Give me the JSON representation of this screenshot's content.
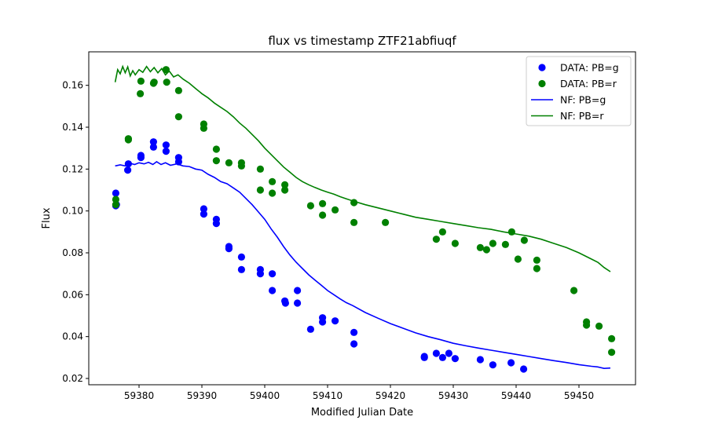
{
  "chart_data": {
    "type": "scatter",
    "title": "flux vs timestamp ZTF21abfiuqf",
    "xlabel": "Modified Julian Date",
    "ylabel": "Flux",
    "xlim": [
      59372,
      59459
    ],
    "ylim": [
      0.017,
      0.176
    ],
    "xticks": [
      59380,
      59390,
      59400,
      59410,
      59420,
      59430,
      59440,
      59450
    ],
    "yticks": [
      0.02,
      0.04,
      0.06,
      0.08,
      0.1,
      0.12,
      0.14,
      0.16
    ],
    "ytick_labels": [
      "0.02",
      "0.04",
      "0.06",
      "0.08",
      "0.10",
      "0.12",
      "0.14",
      "0.16"
    ],
    "grid": false,
    "legend_position": "top-right",
    "colors": {
      "g": "#0000ff",
      "r": "#008000"
    },
    "series": [
      {
        "name": "DATA: PB=g",
        "kind": "scatter",
        "color": "#0000ff",
        "points": [
          [
            59376.3,
            0.1085
          ],
          [
            59376.3,
            0.1025
          ],
          [
            59376.4,
            0.103
          ],
          [
            59378.3,
            0.1225
          ],
          [
            59378.2,
            0.1195
          ],
          [
            59380.3,
            0.1265
          ],
          [
            59380.3,
            0.1255
          ],
          [
            59382.3,
            0.133
          ],
          [
            59382.3,
            0.1305
          ],
          [
            59384.3,
            0.1315
          ],
          [
            59384.3,
            0.1285
          ],
          [
            59386.3,
            0.1255
          ],
          [
            59386.3,
            0.1235
          ],
          [
            59390.3,
            0.101
          ],
          [
            59390.3,
            0.0985
          ],
          [
            59392.3,
            0.096
          ],
          [
            59392.3,
            0.094
          ],
          [
            59394.3,
            0.083
          ],
          [
            59394.3,
            0.082
          ],
          [
            59396.3,
            0.078
          ],
          [
            59396.3,
            0.072
          ],
          [
            59399.3,
            0.072
          ],
          [
            59399.3,
            0.07
          ],
          [
            59401.2,
            0.07
          ],
          [
            59401.2,
            0.062
          ],
          [
            59403.2,
            0.057
          ],
          [
            59403.3,
            0.056
          ],
          [
            59405.2,
            0.062
          ],
          [
            59405.2,
            0.056
          ],
          [
            59407.3,
            0.0435
          ],
          [
            59409.2,
            0.049
          ],
          [
            59409.2,
            0.047
          ],
          [
            59411.2,
            0.0475
          ],
          [
            59414.2,
            0.042
          ],
          [
            59414.2,
            0.0365
          ],
          [
            59425.4,
            0.0305
          ],
          [
            59425.4,
            0.03
          ],
          [
            59427.3,
            0.032
          ],
          [
            59428.3,
            0.03
          ],
          [
            59429.3,
            0.032
          ],
          [
            59430.3,
            0.0295
          ],
          [
            59434.3,
            0.029
          ],
          [
            59436.3,
            0.0265
          ],
          [
            59439.2,
            0.0275
          ],
          [
            59441.2,
            0.0245
          ]
        ]
      },
      {
        "name": "DATA: PB=r",
        "kind": "scatter",
        "color": "#008000",
        "points": [
          [
            59376.3,
            0.1055
          ],
          [
            59376.3,
            0.103
          ],
          [
            59378.3,
            0.1345
          ],
          [
            59378.3,
            0.134
          ],
          [
            59380.3,
            0.162
          ],
          [
            59380.2,
            0.156
          ],
          [
            59382.3,
            0.161
          ],
          [
            59382.4,
            0.1615
          ],
          [
            59384.3,
            0.1675
          ],
          [
            59384.4,
            0.1615
          ],
          [
            59386.3,
            0.1575
          ],
          [
            59386.3,
            0.145
          ],
          [
            59390.3,
            0.1415
          ],
          [
            59390.3,
            0.1395
          ],
          [
            59392.3,
            0.1295
          ],
          [
            59392.3,
            0.124
          ],
          [
            59394.3,
            0.123
          ],
          [
            59396.3,
            0.123
          ],
          [
            59396.3,
            0.1215
          ],
          [
            59399.3,
            0.12
          ],
          [
            59399.3,
            0.11
          ],
          [
            59401.2,
            0.114
          ],
          [
            59401.2,
            0.1085
          ],
          [
            59403.2,
            0.1125
          ],
          [
            59403.2,
            0.11
          ],
          [
            59407.3,
            0.1025
          ],
          [
            59409.2,
            0.1035
          ],
          [
            59409.2,
            0.098
          ],
          [
            59411.2,
            0.1005
          ],
          [
            59414.2,
            0.104
          ],
          [
            59414.2,
            0.0945
          ],
          [
            59419.2,
            0.0945
          ],
          [
            59427.3,
            0.0865
          ],
          [
            59428.3,
            0.09
          ],
          [
            59430.3,
            0.0845
          ],
          [
            59434.3,
            0.0825
          ],
          [
            59435.3,
            0.0815
          ],
          [
            59436.3,
            0.0845
          ],
          [
            59438.3,
            0.084
          ],
          [
            59439.3,
            0.09
          ],
          [
            59440.3,
            0.077
          ],
          [
            59441.3,
            0.086
          ],
          [
            59443.3,
            0.0765
          ],
          [
            59443.3,
            0.0725
          ],
          [
            59449.2,
            0.062
          ],
          [
            59451.2,
            0.047
          ],
          [
            59451.2,
            0.0455
          ],
          [
            59453.2,
            0.045
          ],
          [
            59455.2,
            0.039
          ],
          [
            59455.2,
            0.0325
          ]
        ]
      },
      {
        "name": "NF: PB=g",
        "kind": "line",
        "color": "#0000ff",
        "points": [
          [
            59376.2,
            0.1215
          ],
          [
            59377.0,
            0.122
          ],
          [
            59377.8,
            0.1215
          ],
          [
            59378.5,
            0.1228
          ],
          [
            59379.3,
            0.1222
          ],
          [
            59380.0,
            0.123
          ],
          [
            59380.8,
            0.1225
          ],
          [
            59381.5,
            0.1232
          ],
          [
            59382.2,
            0.1222
          ],
          [
            59382.8,
            0.1235
          ],
          [
            59383.5,
            0.1222
          ],
          [
            59384.2,
            0.123
          ],
          [
            59385.0,
            0.1218
          ],
          [
            59386.0,
            0.1225
          ],
          [
            59387.0,
            0.1215
          ],
          [
            59388.0,
            0.1212
          ],
          [
            59389.0,
            0.12
          ],
          [
            59390.0,
            0.1195
          ],
          [
            59391.0,
            0.1175
          ],
          [
            59392.0,
            0.116
          ],
          [
            59393.0,
            0.114
          ],
          [
            59394.0,
            0.113
          ],
          [
            59395.0,
            0.111
          ],
          [
            59396.0,
            0.109
          ],
          [
            59397.0,
            0.106
          ],
          [
            59398.0,
            0.103
          ],
          [
            59399.0,
            0.0995
          ],
          [
            59400.0,
            0.096
          ],
          [
            59401.0,
            0.0915
          ],
          [
            59402.0,
            0.0875
          ],
          [
            59403.0,
            0.083
          ],
          [
            59404.0,
            0.079
          ],
          [
            59405.0,
            0.0755
          ],
          [
            59406.0,
            0.0725
          ],
          [
            59407.0,
            0.0695
          ],
          [
            59408.0,
            0.067
          ],
          [
            59409.0,
            0.0645
          ],
          [
            59410.0,
            0.062
          ],
          [
            59411.0,
            0.06
          ],
          [
            59412.0,
            0.058
          ],
          [
            59413.0,
            0.0562
          ],
          [
            59414.0,
            0.0548
          ],
          [
            59416.0,
            0.0515
          ],
          [
            59418.0,
            0.0488
          ],
          [
            59420.0,
            0.0462
          ],
          [
            59422.0,
            0.044
          ],
          [
            59424.0,
            0.0418
          ],
          [
            59426.0,
            0.04
          ],
          [
            59428.0,
            0.0385
          ],
          [
            59430.0,
            0.0368
          ],
          [
            59432.0,
            0.0356
          ],
          [
            59434.0,
            0.0345
          ],
          [
            59436.0,
            0.0335
          ],
          [
            59438.0,
            0.0325
          ],
          [
            59440.0,
            0.0315
          ],
          [
            59442.0,
            0.0305
          ],
          [
            59444.0,
            0.0295
          ],
          [
            59446.0,
            0.0285
          ],
          [
            59448.0,
            0.0276
          ],
          [
            59450.0,
            0.0266
          ],
          [
            59452.0,
            0.0258
          ],
          [
            59453.0,
            0.0255
          ],
          [
            59454.0,
            0.0248
          ],
          [
            59455.0,
            0.025
          ]
        ]
      },
      {
        "name": "NF: PB=r",
        "kind": "line",
        "color": "#008000",
        "points": [
          [
            59376.2,
            0.1615
          ],
          [
            59376.6,
            0.1675
          ],
          [
            59377.0,
            0.1655
          ],
          [
            59377.4,
            0.169
          ],
          [
            59377.8,
            0.166
          ],
          [
            59378.2,
            0.1688
          ],
          [
            59378.6,
            0.1645
          ],
          [
            59379.0,
            0.167
          ],
          [
            59379.4,
            0.165
          ],
          [
            59380.0,
            0.1675
          ],
          [
            59380.6,
            0.1662
          ],
          [
            59381.2,
            0.169
          ],
          [
            59381.8,
            0.1665
          ],
          [
            59382.4,
            0.1685
          ],
          [
            59383.0,
            0.166
          ],
          [
            59383.6,
            0.168
          ],
          [
            59384.2,
            0.165
          ],
          [
            59384.8,
            0.1668
          ],
          [
            59385.5,
            0.164
          ],
          [
            59386.2,
            0.165
          ],
          [
            59387.0,
            0.163
          ],
          [
            59388.0,
            0.161
          ],
          [
            59389.0,
            0.1585
          ],
          [
            59390.0,
            0.156
          ],
          [
            59391.0,
            0.154
          ],
          [
            59392.0,
            0.1515
          ],
          [
            59393.0,
            0.1495
          ],
          [
            59394.0,
            0.1475
          ],
          [
            59395.0,
            0.145
          ],
          [
            59396.0,
            0.142
          ],
          [
            59397.0,
            0.1395
          ],
          [
            59398.0,
            0.1365
          ],
          [
            59399.0,
            0.1335
          ],
          [
            59400.0,
            0.13
          ],
          [
            59401.0,
            0.127
          ],
          [
            59402.0,
            0.124
          ],
          [
            59403.0,
            0.121
          ],
          [
            59404.0,
            0.1185
          ],
          [
            59405.0,
            0.116
          ],
          [
            59406.0,
            0.114
          ],
          [
            59407.0,
            0.1125
          ],
          [
            59408.0,
            0.1112
          ],
          [
            59409.0,
            0.11
          ],
          [
            59410.0,
            0.109
          ],
          [
            59411.0,
            0.108
          ],
          [
            59412.0,
            0.1068
          ],
          [
            59413.0,
            0.1058
          ],
          [
            59414.0,
            0.1048
          ],
          [
            59416.0,
            0.103
          ],
          [
            59418.0,
            0.1015
          ],
          [
            59420.0,
            0.1
          ],
          [
            59422.0,
            0.0985
          ],
          [
            59424.0,
            0.097
          ],
          [
            59426.0,
            0.096
          ],
          [
            59428.0,
            0.095
          ],
          [
            59430.0,
            0.094
          ],
          [
            59432.0,
            0.093
          ],
          [
            59434.0,
            0.092
          ],
          [
            59436.0,
            0.0912
          ],
          [
            59438.0,
            0.09
          ],
          [
            59440.0,
            0.089
          ],
          [
            59442.0,
            0.088
          ],
          [
            59444.0,
            0.0865
          ],
          [
            59446.0,
            0.0845
          ],
          [
            59448.0,
            0.0825
          ],
          [
            59450.0,
            0.08
          ],
          [
            59452.0,
            0.077
          ],
          [
            59453.0,
            0.0755
          ],
          [
            59454.0,
            0.073
          ],
          [
            59455.0,
            0.071
          ]
        ]
      }
    ]
  }
}
